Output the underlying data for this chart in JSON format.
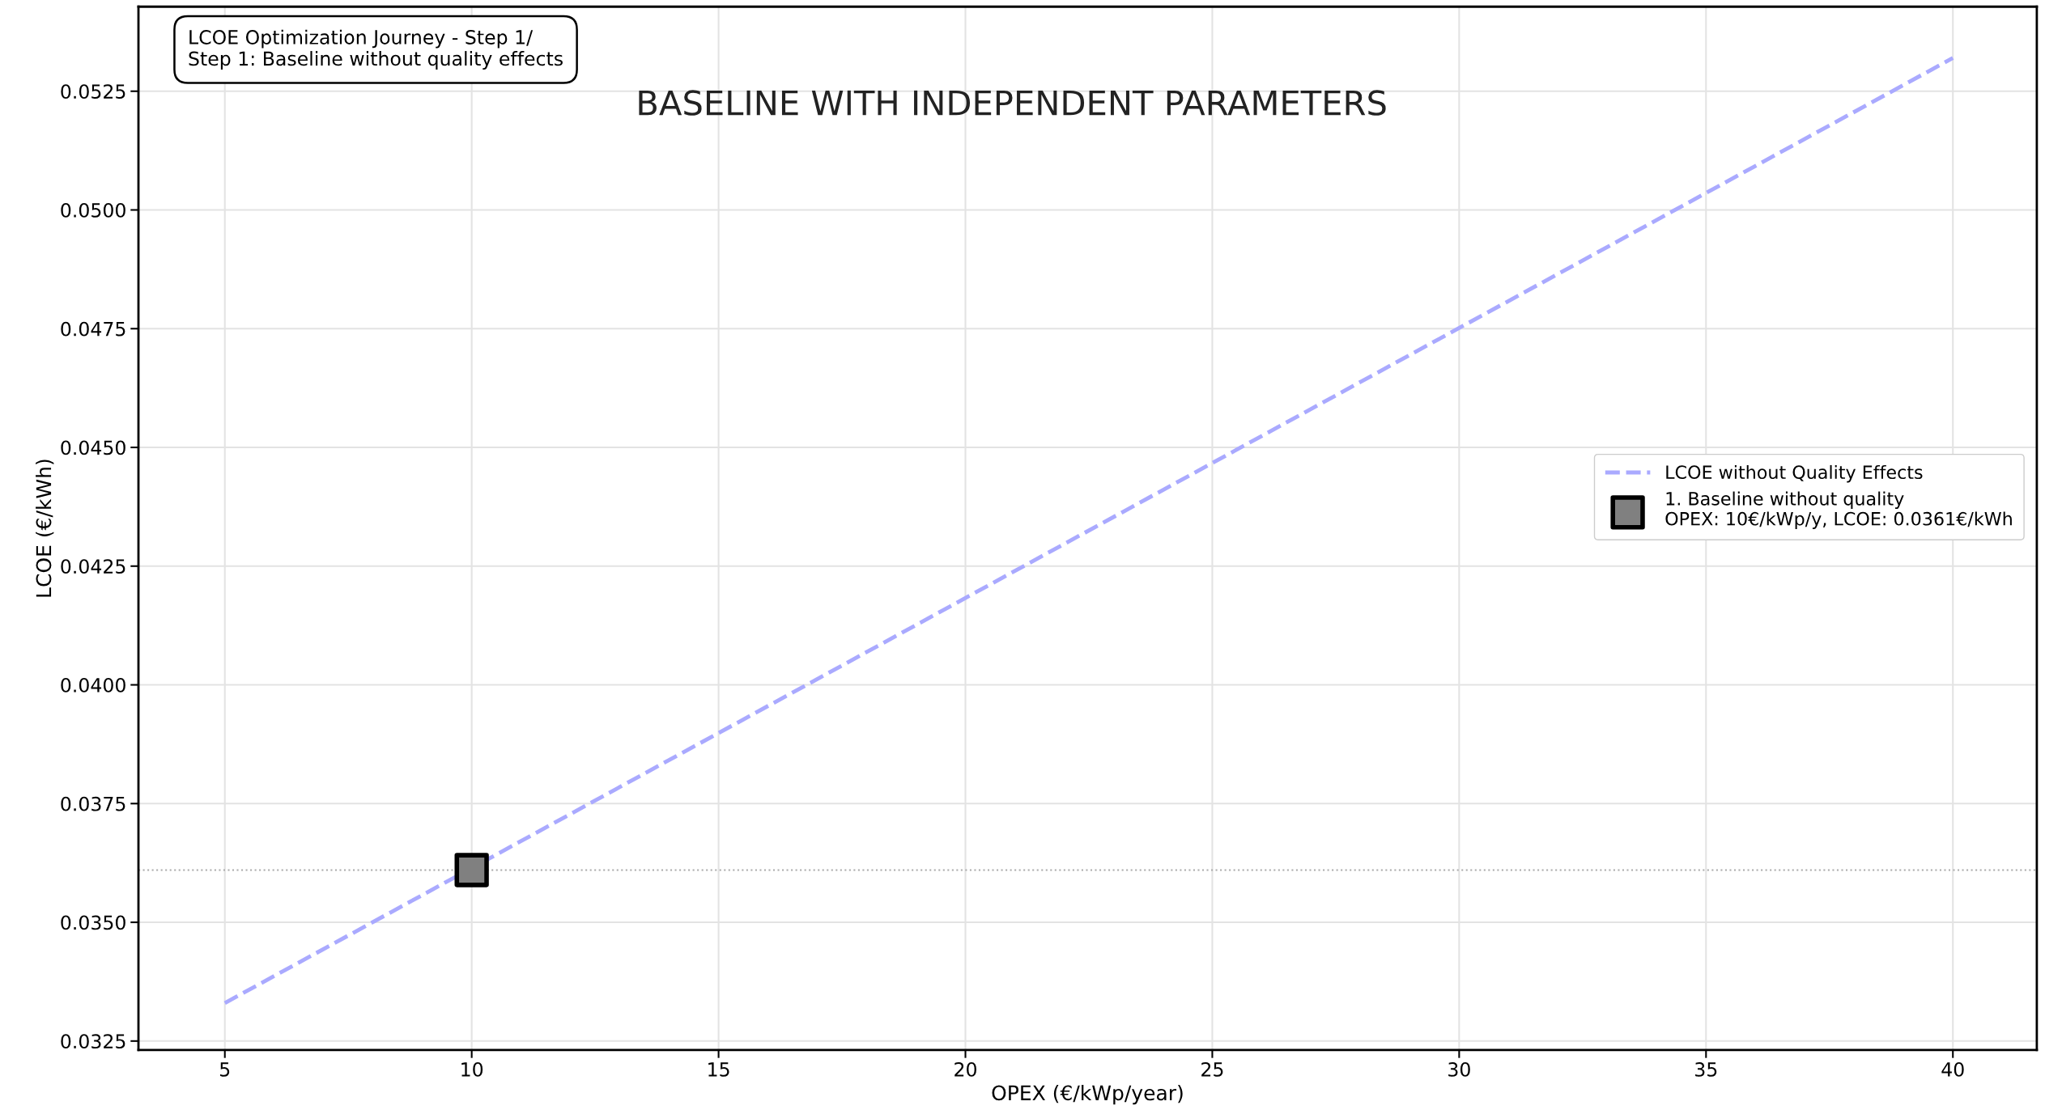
{
  "chart_data": {
    "type": "line",
    "title": "BASELINE WITH INDEPENDENT PARAMETERS",
    "xlabel": "OPEX (€/kWp/year)",
    "ylabel": "LCOE (€/kWh)",
    "annotations": [
      "LCOE Optimization Journey - Step 1/\nStep 1: Baseline without quality effects"
    ],
    "series": [
      {
        "name": "LCOE without Quality Effects",
        "color": "#aaaaff",
        "line_style": "dashed",
        "marker": "none",
        "x": [
          5,
          40
        ],
        "values": [
          0.0333,
          0.0532
        ]
      },
      {
        "name": "1. Baseline without quality\nOPEX: 10€/kWp/y, LCOE: 0.0361€/kWh",
        "type": "scatter",
        "color": "#808080",
        "marker": "square",
        "x": [
          10
        ],
        "values": [
          0.0361
        ]
      }
    ],
    "ref_lines": [
      {
        "axis": "y",
        "value": 0.0361,
        "color": "#aaaaaa",
        "line_style": "dotted"
      }
    ],
    "xlim": [
      3.25,
      41.7
    ],
    "ylim": [
      0.03231,
      0.05428
    ],
    "xticks": [
      5,
      10,
      15,
      20,
      25,
      30,
      35,
      40
    ],
    "yticks": [
      {
        "value": 0.0325,
        "label": "0.0325"
      },
      {
        "value": 0.035,
        "label": "0.0350"
      },
      {
        "value": 0.0375,
        "label": "0.0375"
      },
      {
        "value": 0.04,
        "label": "0.0400"
      },
      {
        "value": 0.0425,
        "label": "0.0425"
      },
      {
        "value": 0.045,
        "label": "0.0450"
      },
      {
        "value": 0.0475,
        "label": "0.0475"
      },
      {
        "value": 0.05,
        "label": "0.0500"
      },
      {
        "value": 0.0525,
        "label": "0.0525"
      }
    ],
    "grid": true,
    "legend": "right"
  }
}
